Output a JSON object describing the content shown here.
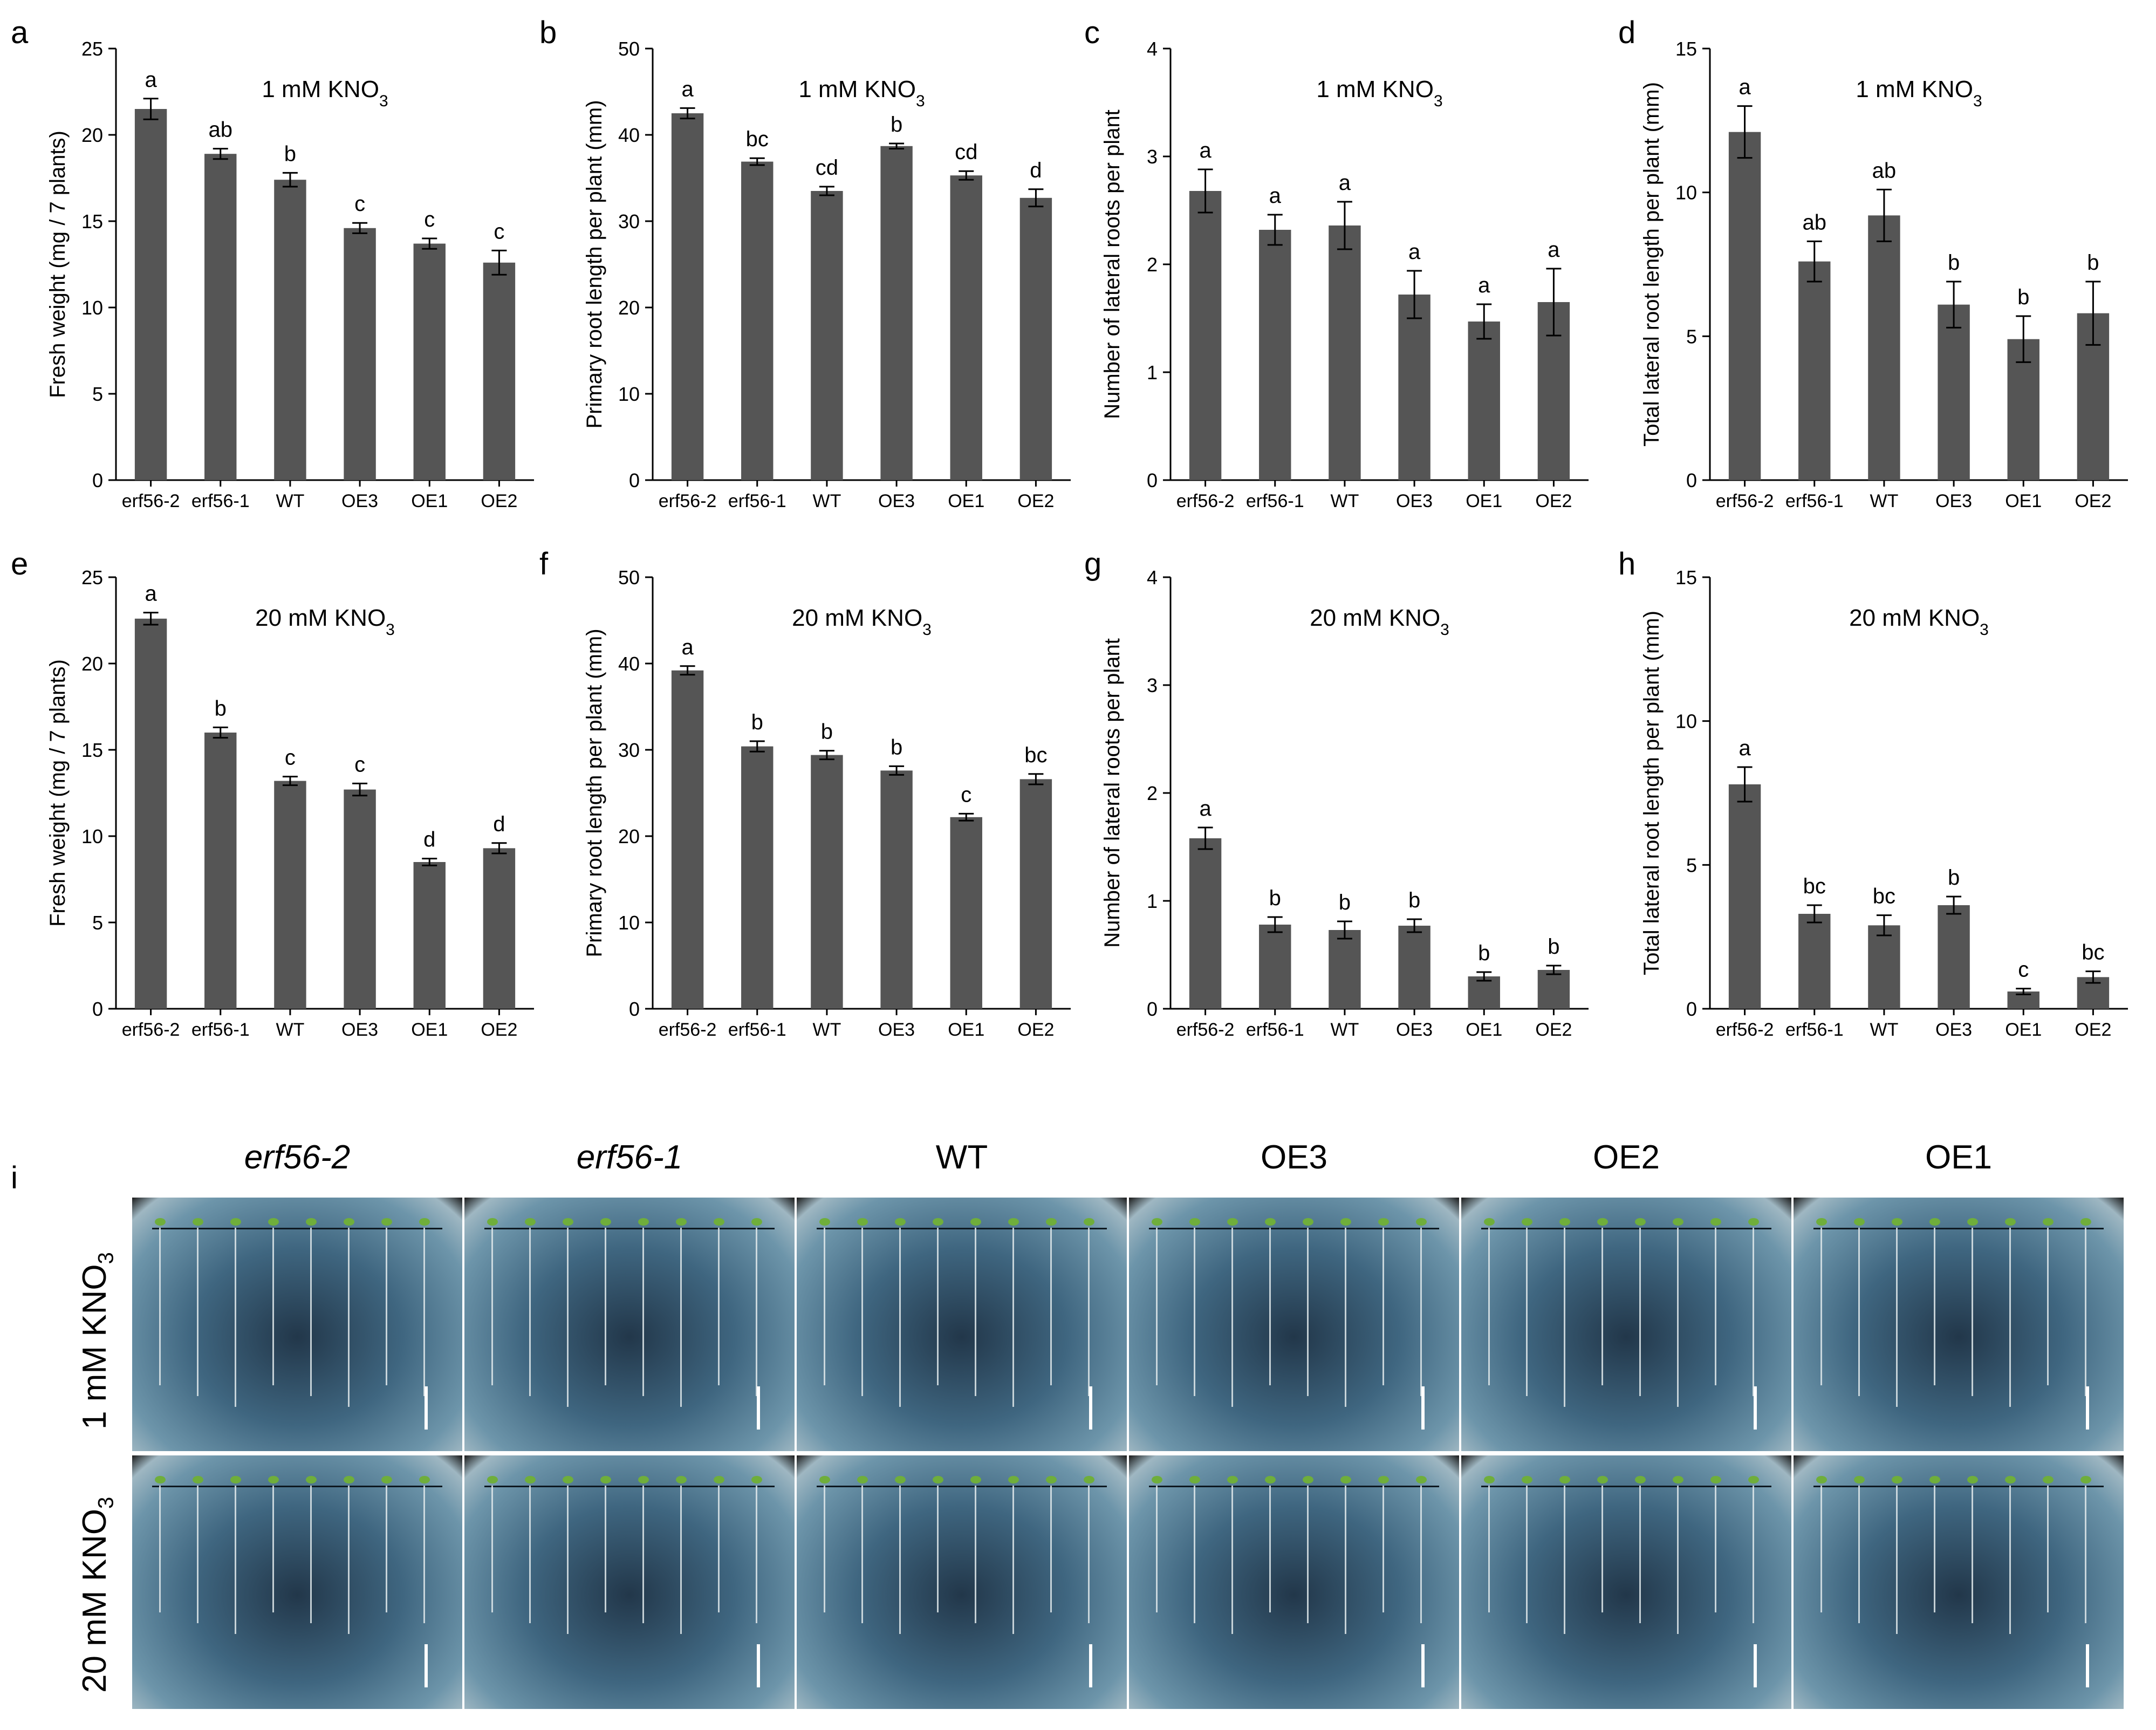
{
  "panel_letters": [
    "a",
    "b",
    "c",
    "d",
    "e",
    "f",
    "g",
    "h",
    "i"
  ],
  "categories": [
    "erf56-2",
    "erf56-1",
    "WT",
    "OE3",
    "OE1",
    "OE2"
  ],
  "chart_data": [
    {
      "id": "a",
      "type": "bar",
      "title": "1  mM  KNO",
      "title_sub": "3",
      "ylabel": "Fresh weight (mg / 7 plants)",
      "ylim": [
        0,
        25
      ],
      "yticks": [
        0,
        5,
        10,
        15,
        20,
        25
      ],
      "categories": [
        "erf56-2",
        "erf56-1",
        "WT",
        "OE3",
        "OE1",
        "OE2"
      ],
      "values": [
        21.5,
        18.9,
        17.4,
        14.6,
        13.7,
        12.6
      ],
      "errors": [
        0.6,
        0.3,
        0.4,
        0.3,
        0.3,
        0.7
      ],
      "labels": [
        "a",
        "ab",
        "b",
        "c",
        "c",
        "c"
      ]
    },
    {
      "id": "b",
      "type": "bar",
      "title": "1  mM  KNO",
      "title_sub": "3",
      "ylabel": "Primary root length per plant (mm)",
      "ylim": [
        0,
        50
      ],
      "yticks": [
        0,
        10,
        20,
        30,
        40,
        50
      ],
      "categories": [
        "erf56-2",
        "erf56-1",
        "WT",
        "OE3",
        "OE1",
        "OE2"
      ],
      "values": [
        42.5,
        36.9,
        33.5,
        38.7,
        35.3,
        32.7
      ],
      "errors": [
        0.6,
        0.4,
        0.5,
        0.3,
        0.5,
        1.0
      ],
      "labels": [
        "a",
        "bc",
        "cd",
        "b",
        "cd",
        "d"
      ]
    },
    {
      "id": "c",
      "type": "bar",
      "title": "1  mM  KNO",
      "title_sub": "3",
      "ylabel": "Number of lateral roots per plant",
      "ylim": [
        0,
        4
      ],
      "yticks": [
        0,
        1,
        2,
        3,
        4
      ],
      "categories": [
        "erf56-2",
        "erf56-1",
        "WT",
        "OE3",
        "OE1",
        "OE2"
      ],
      "values": [
        2.68,
        2.32,
        2.36,
        1.72,
        1.47,
        1.65
      ],
      "errors": [
        0.2,
        0.14,
        0.22,
        0.22,
        0.16,
        0.31
      ],
      "labels": [
        "a",
        "a",
        "a",
        "a",
        "a",
        "a"
      ]
    },
    {
      "id": "d",
      "type": "bar",
      "title": "1  mM  KNO",
      "title_sub": "3",
      "ylabel": "Total lateral root length per plant (mm)",
      "ylim": [
        0,
        15
      ],
      "yticks": [
        0,
        5,
        10,
        15
      ],
      "categories": [
        "erf56-2",
        "erf56-1",
        "WT",
        "OE3",
        "OE1",
        "OE2"
      ],
      "values": [
        12.1,
        7.6,
        9.2,
        6.1,
        4.9,
        5.8
      ],
      "errors": [
        0.9,
        0.7,
        0.9,
        0.8,
        0.8,
        1.1
      ],
      "labels": [
        "a",
        "ab",
        "ab",
        "b",
        "b",
        "b"
      ]
    },
    {
      "id": "e",
      "type": "bar",
      "title": "20  mM  KNO",
      "title_sub": "3",
      "ylabel": "Fresh weight (mg / 7 plants)",
      "ylim": [
        0,
        25
      ],
      "yticks": [
        0,
        5,
        10,
        15,
        20,
        25
      ],
      "categories": [
        "erf56-2",
        "erf56-1",
        "WT",
        "OE3",
        "OE1",
        "OE2"
      ],
      "values": [
        22.6,
        16.0,
        13.2,
        12.7,
        8.5,
        9.3
      ],
      "errors": [
        0.35,
        0.3,
        0.25,
        0.35,
        0.2,
        0.3
      ],
      "labels": [
        "a",
        "b",
        "c",
        "c",
        "d",
        "d"
      ]
    },
    {
      "id": "f",
      "type": "bar",
      "title": "20  mM  KNO",
      "title_sub": "3",
      "ylabel": "Primary root length per plant (mm)",
      "ylim": [
        0,
        50
      ],
      "yticks": [
        0,
        10,
        20,
        30,
        40,
        50
      ],
      "categories": [
        "erf56-2",
        "erf56-1",
        "WT",
        "OE3",
        "OE1",
        "OE2"
      ],
      "values": [
        39.2,
        30.4,
        29.4,
        27.6,
        22.2,
        26.6
      ],
      "errors": [
        0.5,
        0.6,
        0.5,
        0.5,
        0.4,
        0.6
      ],
      "labels": [
        "a",
        "b",
        "b",
        "b",
        "c",
        "bc"
      ]
    },
    {
      "id": "g",
      "type": "bar",
      "title": "20  mM  KNO",
      "title_sub": "3",
      "ylabel": "Number of lateral roots per plant",
      "ylim": [
        0,
        4
      ],
      "yticks": [
        0,
        1,
        2,
        3,
        4
      ],
      "categories": [
        "erf56-2",
        "erf56-1",
        "WT",
        "OE3",
        "OE1",
        "OE2"
      ],
      "values": [
        1.58,
        0.78,
        0.73,
        0.77,
        0.3,
        0.36
      ],
      "errors": [
        0.1,
        0.07,
        0.08,
        0.06,
        0.04,
        0.04
      ],
      "labels": [
        "a",
        "b",
        "b",
        "b",
        "b",
        "b"
      ]
    },
    {
      "id": "h",
      "type": "bar",
      "title": "20  mM  KNO",
      "title_sub": "3",
      "ylabel": "Total lateral root length per plant (mm)",
      "ylim": [
        0,
        15
      ],
      "yticks": [
        0,
        5,
        10,
        15
      ],
      "categories": [
        "erf56-2",
        "erf56-1",
        "WT",
        "OE3",
        "OE1",
        "OE2"
      ],
      "values": [
        7.8,
        3.3,
        2.9,
        3.6,
        0.6,
        1.1
      ],
      "errors": [
        0.6,
        0.3,
        0.35,
        0.3,
        0.1,
        0.2
      ],
      "labels": [
        "a",
        "bc",
        "bc",
        "b",
        "c",
        "bc"
      ]
    }
  ],
  "photo_panel": {
    "column_labels": [
      "erf56-2",
      "erf56-1",
      "WT",
      "OE3",
      "OE2",
      "OE1"
    ],
    "column_italic": [
      true,
      true,
      false,
      false,
      false,
      false
    ],
    "row_labels": [
      {
        "prefix": "1 mM KNO",
        "sub": "3"
      },
      {
        "prefix": "20 mM KNO",
        "sub": "3"
      }
    ]
  },
  "colors": {
    "bar": "#555555",
    "text": "#000000",
    "axis": "#000000",
    "seedling": "#6fae3b"
  }
}
